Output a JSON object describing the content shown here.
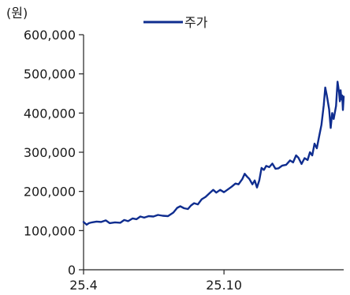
{
  "chart_data": {
    "type": "line",
    "ylabel": "(원)",
    "xlabel": "",
    "ylim": [
      0,
      600000
    ],
    "yticks": [
      0,
      100000,
      200000,
      300000,
      400000,
      500000,
      600000
    ],
    "ytick_labels": [
      "0",
      "100,000",
      "200,000",
      "300,000",
      "400,000",
      "500,000",
      "600,000"
    ],
    "xticks": [
      {
        "x": "2025-04-01",
        "label": "25.4"
      },
      {
        "x": "2025-10-01",
        "label": "25.10"
      }
    ],
    "xlim": [
      "2025-04-01",
      "2026-03-06"
    ],
    "legend_position": "top-center",
    "grid": false,
    "series": [
      {
        "name": "주가",
        "color": "#0f2d8f",
        "points": [
          [
            "2025-04-01",
            122000
          ],
          [
            "2025-04-05",
            115000
          ],
          [
            "2025-04-08",
            119000
          ],
          [
            "2025-04-12",
            121000
          ],
          [
            "2025-04-18",
            123000
          ],
          [
            "2025-04-24",
            122000
          ],
          [
            "2025-04-30",
            126000
          ],
          [
            "2025-05-05",
            119000
          ],
          [
            "2025-05-12",
            121000
          ],
          [
            "2025-05-19",
            120000
          ],
          [
            "2025-05-24",
            127000
          ],
          [
            "2025-05-29",
            124000
          ],
          [
            "2025-06-04",
            131000
          ],
          [
            "2025-06-09",
            129000
          ],
          [
            "2025-06-14",
            136000
          ],
          [
            "2025-06-19",
            133000
          ],
          [
            "2025-06-25",
            137000
          ],
          [
            "2025-07-01",
            136000
          ],
          [
            "2025-07-07",
            140000
          ],
          [
            "2025-07-13",
            138000
          ],
          [
            "2025-07-20",
            137000
          ],
          [
            "2025-07-27",
            146000
          ],
          [
            "2025-08-01",
            158000
          ],
          [
            "2025-08-05",
            162000
          ],
          [
            "2025-08-10",
            157000
          ],
          [
            "2025-08-15",
            155000
          ],
          [
            "2025-08-19",
            164000
          ],
          [
            "2025-08-23",
            170000
          ],
          [
            "2025-08-28",
            167000
          ],
          [
            "2025-09-02",
            180000
          ],
          [
            "2025-09-07",
            186000
          ],
          [
            "2025-09-12",
            195000
          ],
          [
            "2025-09-17",
            204000
          ],
          [
            "2025-09-21",
            197000
          ],
          [
            "2025-09-26",
            204000
          ],
          [
            "2025-10-01",
            198000
          ],
          [
            "2025-10-06",
            205000
          ],
          [
            "2025-10-11",
            212000
          ],
          [
            "2025-10-16",
            220000
          ],
          [
            "2025-10-20",
            218000
          ],
          [
            "2025-10-25",
            232000
          ],
          [
            "2025-10-28",
            245000
          ],
          [
            "2025-10-31",
            238000
          ],
          [
            "2025-11-03",
            232000
          ],
          [
            "2025-11-07",
            218000
          ],
          [
            "2025-11-10",
            228000
          ],
          [
            "2025-11-13",
            210000
          ],
          [
            "2025-11-16",
            228000
          ],
          [
            "2025-11-19",
            260000
          ],
          [
            "2025-11-22",
            255000
          ],
          [
            "2025-11-25",
            265000
          ],
          [
            "2025-11-29",
            262000
          ],
          [
            "2025-12-03",
            271000
          ],
          [
            "2025-12-07",
            258000
          ],
          [
            "2025-12-11",
            259000
          ],
          [
            "2025-12-16",
            266000
          ],
          [
            "2025-12-21",
            268000
          ],
          [
            "2025-12-26",
            279000
          ],
          [
            "2025-12-30",
            274000
          ],
          [
            "2026-01-03",
            292000
          ],
          [
            "2026-01-06",
            286000
          ],
          [
            "2026-01-10",
            270000
          ],
          [
            "2026-01-14",
            285000
          ],
          [
            "2026-01-18",
            280000
          ],
          [
            "2026-01-21",
            300000
          ],
          [
            "2026-01-24",
            292000
          ],
          [
            "2026-01-27",
            322000
          ],
          [
            "2026-01-30",
            310000
          ],
          [
            "2026-02-02",
            340000
          ],
          [
            "2026-02-05",
            370000
          ],
          [
            "2026-02-08",
            420000
          ],
          [
            "2026-02-10",
            465000
          ],
          [
            "2026-02-12",
            445000
          ],
          [
            "2026-02-15",
            410000
          ],
          [
            "2026-02-17",
            362000
          ],
          [
            "2026-02-19",
            400000
          ],
          [
            "2026-02-21",
            385000
          ],
          [
            "2026-02-24",
            418000
          ],
          [
            "2026-02-26",
            480000
          ],
          [
            "2026-02-28",
            452000
          ],
          [
            "2026-03-01",
            430000
          ],
          [
            "2026-03-02",
            458000
          ],
          [
            "2026-03-03",
            435000
          ],
          [
            "2026-03-04",
            445000
          ],
          [
            "2026-03-05",
            408000
          ],
          [
            "2026-03-06",
            442000
          ]
        ]
      }
    ]
  }
}
